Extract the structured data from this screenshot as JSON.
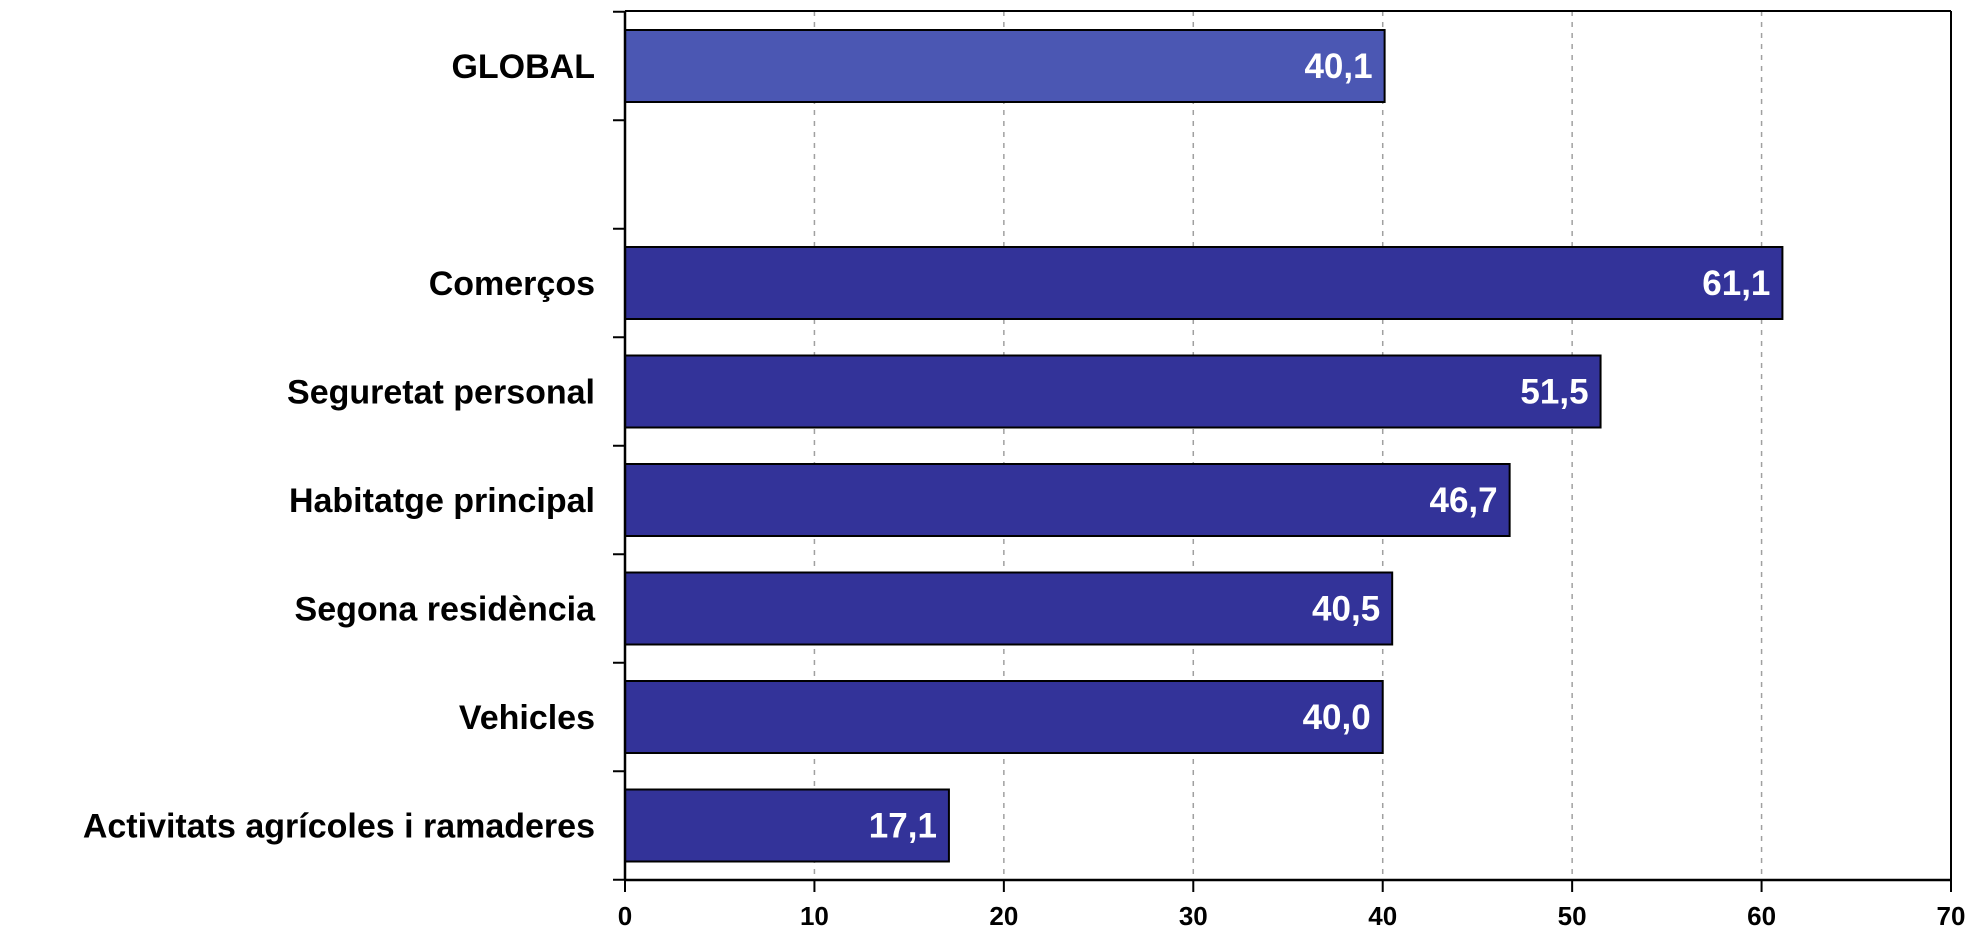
{
  "chart_data": {
    "type": "bar",
    "orientation": "horizontal",
    "categories": [
      "GLOBAL",
      "",
      "Comerços",
      "Seguretat personal",
      "Habitatge principal",
      "Segona residència",
      "Vehicles",
      "Activitats agrícoles i ramaderes"
    ],
    "values": [
      40.1,
      null,
      61.1,
      51.5,
      46.7,
      40.5,
      40.0,
      17.1
    ],
    "value_labels": [
      "40,1",
      "",
      "61,1",
      "51,5",
      "46,7",
      "40,5",
      "40,0",
      "17,1"
    ],
    "title": "",
    "xlabel": "",
    "ylabel": "",
    "xlim": [
      0,
      70
    ],
    "x_ticks": [
      0,
      10,
      20,
      30,
      40,
      50,
      60,
      70
    ],
    "grid": "vertical dashed",
    "legend": "none",
    "colors": {
      "highlight_bar": "#4b57b3",
      "bar": "#333399",
      "bar_edge": "#000000",
      "grid": "#a0a0a0",
      "axis": "#000000"
    }
  }
}
